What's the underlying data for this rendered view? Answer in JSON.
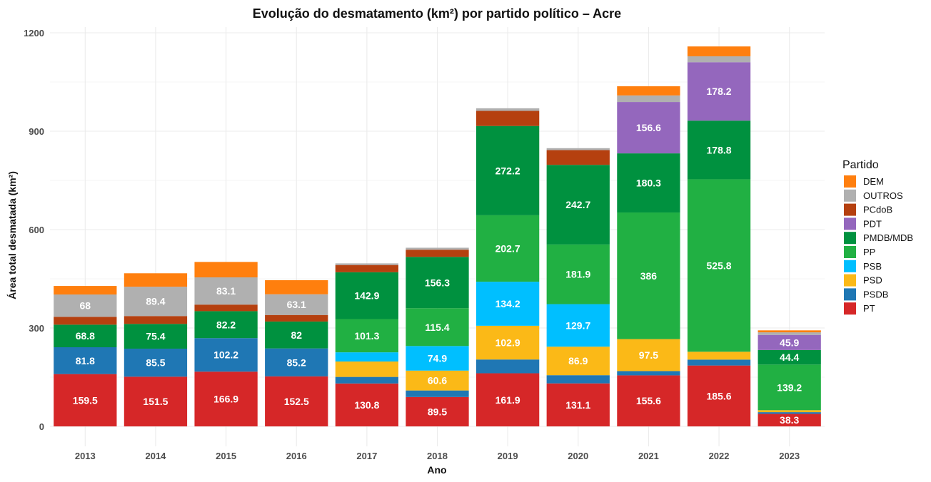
{
  "chart_data": {
    "type": "bar",
    "stacked": true,
    "title": "Evolução do desmatamento (km²) por partido político – Acre",
    "xlabel": "Ano",
    "ylabel": "Área total desmatada (km²)",
    "ylim": [
      0,
      1200
    ],
    "yticks": [
      0,
      300,
      600,
      900,
      1200
    ],
    "grid": true,
    "legend": {
      "title": "Partido",
      "position": "right"
    },
    "categories": [
      "2013",
      "2014",
      "2015",
      "2016",
      "2017",
      "2018",
      "2019",
      "2020",
      "2021",
      "2022",
      "2023"
    ],
    "series": [
      {
        "name": "PT",
        "color": "#d62728",
        "values": [
          159.5,
          151.5,
          166.9,
          152.5,
          130.8,
          89.5,
          161.9,
          131.1,
          155.6,
          185.6,
          38.3
        ],
        "labels": [
          "159.5",
          "151.5",
          "166.9",
          "152.5",
          "130.8",
          "89.5",
          "161.9",
          "131.1",
          "155.6",
          "185.6",
          "38.3"
        ]
      },
      {
        "name": "PSDB",
        "color": "#1f77b4",
        "values": [
          81.8,
          85.5,
          102.2,
          85.2,
          20,
          20,
          42,
          25,
          13,
          18,
          5
        ],
        "labels": [
          "81.8",
          "85.5",
          "102.2",
          "85.2",
          "",
          "",
          "",
          "",
          "",
          "",
          ""
        ]
      },
      {
        "name": "PSD",
        "color": "#fbb917",
        "values": [
          0,
          0,
          0,
          0,
          47,
          60.6,
          102.9,
          86.9,
          97.5,
          24,
          6
        ],
        "labels": [
          "",
          "",
          "",
          "",
          "",
          "60.6",
          "102.9",
          "86.9",
          "97.5",
          "",
          ""
        ]
      },
      {
        "name": "PSB",
        "color": "#00bfff",
        "values": [
          0,
          0,
          0,
          0,
          28,
          74.9,
          134.2,
          129.7,
          0,
          0,
          0
        ],
        "labels": [
          "",
          "",
          "",
          "",
          "",
          "74.9",
          "134.2",
          "129.7",
          "",
          "",
          ""
        ]
      },
      {
        "name": "PP",
        "color": "#21b043",
        "values": [
          0,
          0,
          0,
          0,
          101.3,
          115.4,
          202.7,
          181.9,
          386,
          525.8,
          139.2
        ],
        "labels": [
          "",
          "",
          "",
          "",
          "101.3",
          "115.4",
          "202.7",
          "181.9",
          "386",
          "525.8",
          "139.2"
        ]
      },
      {
        "name": "PMDB/MDB",
        "color": "#00913f",
        "values": [
          68.8,
          75.4,
          82.2,
          82,
          142.9,
          156.3,
          272.2,
          242.7,
          180.3,
          178.8,
          44.4
        ],
        "labels": [
          "68.8",
          "75.4",
          "82.2",
          "82",
          "142.9",
          "156.3",
          "272.2",
          "242.7",
          "180.3",
          "178.8",
          "44.4"
        ]
      },
      {
        "name": "PDT",
        "color": "#9467bd",
        "values": [
          0,
          0,
          0,
          0,
          0,
          0,
          0,
          0,
          156.6,
          178.2,
          45.9
        ],
        "labels": [
          "",
          "",
          "",
          "",
          "",
          "",
          "",
          "",
          "156.6",
          "178.2",
          "45.9"
        ]
      },
      {
        "name": "PCdoB",
        "color": "#b5400f",
        "values": [
          24,
          24,
          20,
          20,
          22,
          22,
          46,
          45,
          0,
          0,
          0
        ],
        "labels": [
          "",
          "",
          "",
          "",
          "",
          "",
          "",
          "",
          "",
          "",
          ""
        ]
      },
      {
        "name": "OUTROS",
        "color": "#b0b0b0",
        "values": [
          68,
          89.4,
          83.1,
          63.1,
          5,
          6,
          8,
          6,
          20,
          18,
          8
        ],
        "labels": [
          "68",
          "89.4",
          "83.1",
          "63.1",
          "",
          "",
          "",
          "",
          "",
          "",
          ""
        ]
      },
      {
        "name": "DEM",
        "color": "#ff7f0e",
        "values": [
          26,
          41,
          47,
          43,
          0,
          0,
          0,
          0,
          28,
          30,
          6
        ],
        "labels": [
          "",
          "",
          "",
          "",
          "",
          "",
          "",
          "",
          "",
          "",
          ""
        ]
      }
    ],
    "legend_order": [
      "DEM",
      "OUTROS",
      "PCdoB",
      "PDT",
      "PMDB/MDB",
      "PP",
      "PSB",
      "PSD",
      "PSDB",
      "PT"
    ]
  }
}
